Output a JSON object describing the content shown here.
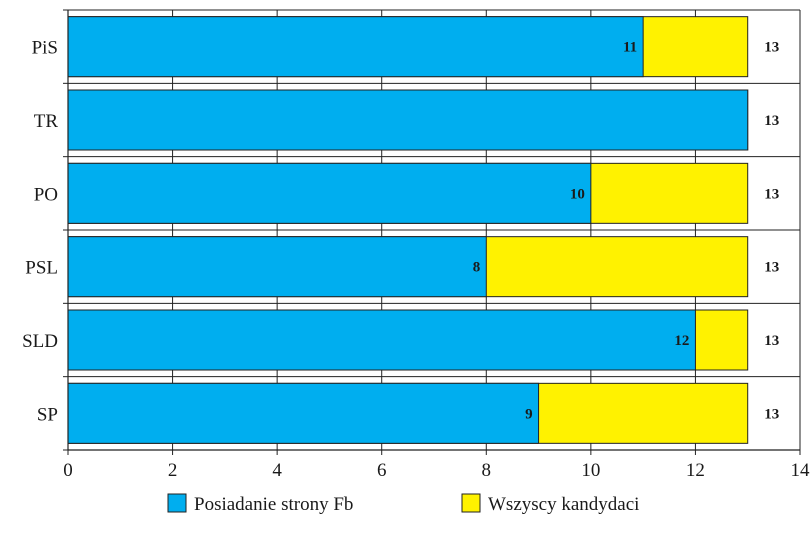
{
  "chart_data": {
    "type": "bar",
    "orientation": "horizontal",
    "stacked": "overlay",
    "categories": [
      "PiS",
      "TR",
      "PO",
      "PSL",
      "SLD",
      "SP"
    ],
    "series": [
      {
        "name": "Posiadanie strony Fb",
        "color": "#00AEEF",
        "values": [
          11,
          13,
          10,
          8,
          12,
          9
        ],
        "labels": [
          "11",
          "",
          "10",
          "8",
          "12",
          "9"
        ]
      },
      {
        "name": "Wszyscy kandydaci",
        "color": "#FFF200",
        "values": [
          13,
          13,
          13,
          13,
          13,
          13
        ],
        "labels": [
          "13",
          "13",
          "13",
          "13",
          "13",
          "13"
        ]
      }
    ],
    "xlim": [
      0,
      14
    ],
    "xticks": [
      0,
      2,
      4,
      6,
      8,
      10,
      12,
      14
    ],
    "grid": true,
    "legend": "bottom",
    "title": "",
    "xlabel": "",
    "ylabel": ""
  }
}
